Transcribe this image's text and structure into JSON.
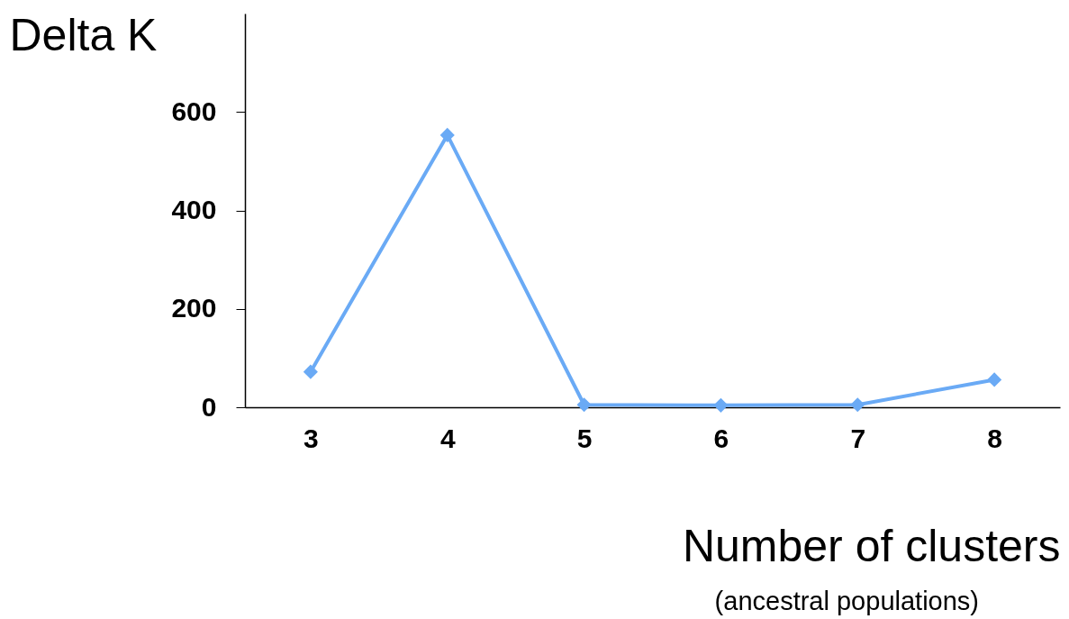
{
  "chart_data": {
    "type": "line",
    "ylabel": "Delta K",
    "xlabel": "Number of clusters",
    "annotations": [
      "(ancestral populations)"
    ],
    "categories": [
      "3",
      "4",
      "5",
      "6",
      "7",
      "8"
    ],
    "series": [
      {
        "color": "#6aaaf5",
        "values": [
          72,
          553,
          5,
          4,
          5,
          56
        ]
      }
    ],
    "ylim": [
      0,
      800
    ],
    "yticks": [
      0,
      200,
      400,
      600
    ],
    "grid": false,
    "marker": "diamond",
    "line_style": "solid"
  }
}
